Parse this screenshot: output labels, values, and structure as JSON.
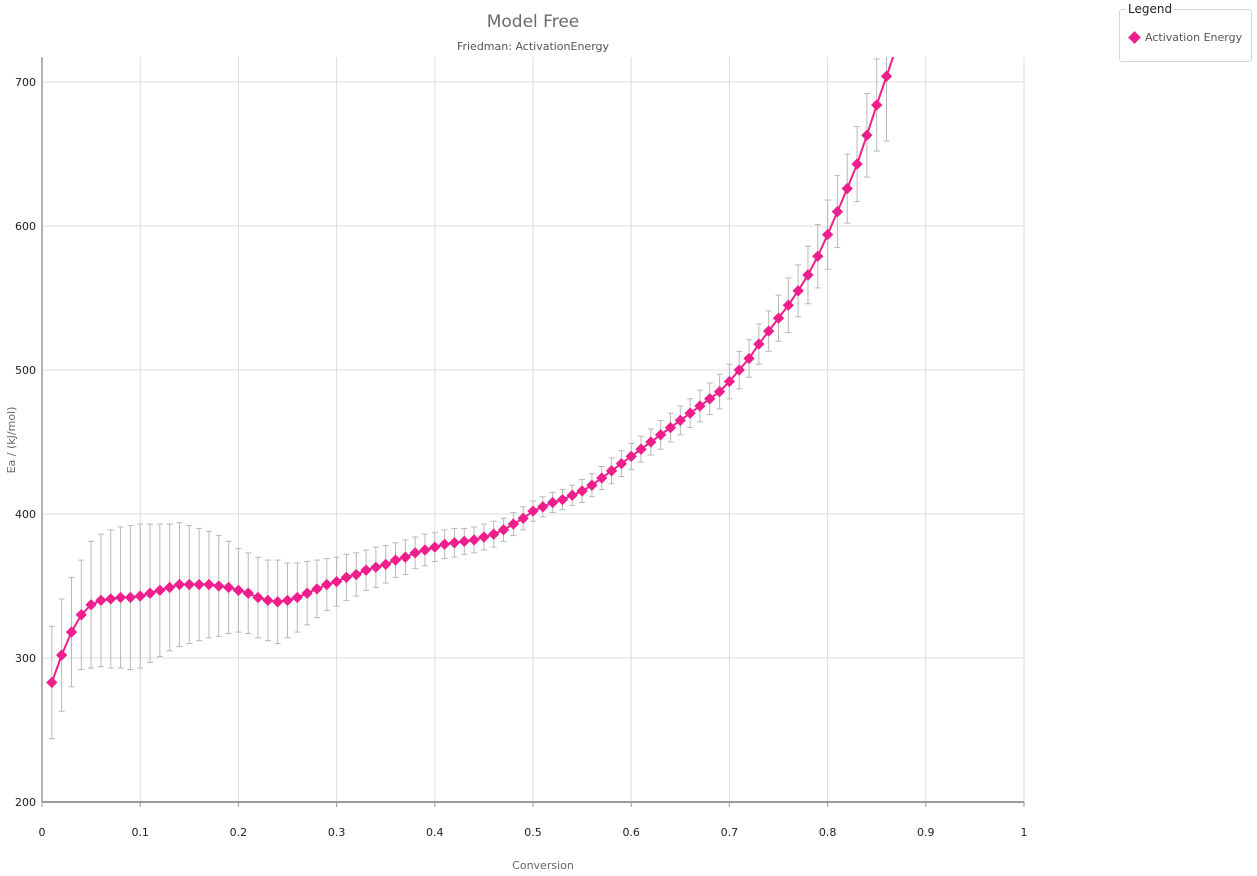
{
  "chart_data": {
    "type": "line",
    "title": "Model Free",
    "subtitle": "Friedman: ActivationEnergy",
    "xlabel": "Conversion",
    "ylabel": "Ea / (kJ/mol)",
    "xlim": [
      0,
      1
    ],
    "ylim": [
      200,
      720
    ],
    "xticks": [
      "0",
      "0.1",
      "0.2",
      "0.3",
      "0.4",
      "0.5",
      "0.6",
      "0.7",
      "0.8",
      "0.9",
      "1"
    ],
    "yticks": [
      "200",
      "300",
      "400",
      "500",
      "600",
      "700"
    ],
    "grid": true,
    "legend": {
      "title": "Legend",
      "placement": "top-right"
    },
    "colors": {
      "series": "#ee1e8c",
      "error": "#b8b8b8",
      "grid": "#dddddd",
      "axis": "#9a9a9a"
    },
    "series": [
      {
        "name": "Activation Energy",
        "x": [
          0.01,
          0.02,
          0.03,
          0.04,
          0.05,
          0.06,
          0.07,
          0.08,
          0.09,
          0.1,
          0.11,
          0.12,
          0.13,
          0.14,
          0.15,
          0.16,
          0.17,
          0.18,
          0.19,
          0.2,
          0.21,
          0.22,
          0.23,
          0.24,
          0.25,
          0.26,
          0.27,
          0.28,
          0.29,
          0.3,
          0.31,
          0.32,
          0.33,
          0.34,
          0.35,
          0.36,
          0.37,
          0.38,
          0.39,
          0.4,
          0.41,
          0.42,
          0.43,
          0.44,
          0.45,
          0.46,
          0.47,
          0.48,
          0.49,
          0.5,
          0.51,
          0.52,
          0.53,
          0.54,
          0.55,
          0.56,
          0.57,
          0.58,
          0.59,
          0.6,
          0.61,
          0.62,
          0.63,
          0.64,
          0.65,
          0.66,
          0.67,
          0.68,
          0.69,
          0.7,
          0.71,
          0.72,
          0.73,
          0.74,
          0.75,
          0.76,
          0.77,
          0.78,
          0.79,
          0.8,
          0.81,
          0.82,
          0.83,
          0.84,
          0.85,
          0.86
        ],
        "values": [
          283,
          302,
          318,
          330,
          337,
          340,
          341,
          342,
          342,
          343,
          345,
          347,
          349,
          351,
          351,
          351,
          351,
          350,
          349,
          347,
          345,
          342,
          340,
          339,
          340,
          342,
          345,
          348,
          351,
          353,
          356,
          358,
          361,
          363,
          365,
          368,
          370,
          373,
          375,
          377,
          379,
          380,
          381,
          382,
          384,
          386,
          389,
          393,
          397,
          402,
          405,
          408,
          410,
          413,
          416,
          420,
          425,
          430,
          435,
          440,
          445,
          450,
          455,
          460,
          465,
          470,
          475,
          480,
          485,
          492,
          500,
          508,
          518,
          527,
          536,
          545,
          555,
          566,
          579,
          594,
          610,
          626,
          643,
          663,
          684,
          704
        ],
        "error": [
          39,
          39,
          38,
          38,
          44,
          46,
          48,
          49,
          50,
          50,
          48,
          46,
          44,
          43,
          41,
          39,
          37,
          35,
          32,
          29,
          28,
          28,
          28,
          29,
          26,
          24,
          22,
          20,
          18,
          17,
          16,
          15,
          14,
          14,
          13,
          12,
          12,
          11,
          11,
          10,
          10,
          10,
          9,
          9,
          9,
          9,
          8,
          8,
          8,
          7,
          7,
          7,
          7,
          7,
          8,
          8,
          8,
          9,
          9,
          9,
          9,
          9,
          10,
          10,
          10,
          10,
          11,
          11,
          12,
          12,
          13,
          13,
          14,
          14,
          16,
          19,
          18,
          20,
          22,
          24,
          25,
          24,
          26,
          29,
          32,
          45
        ]
      }
    ]
  }
}
